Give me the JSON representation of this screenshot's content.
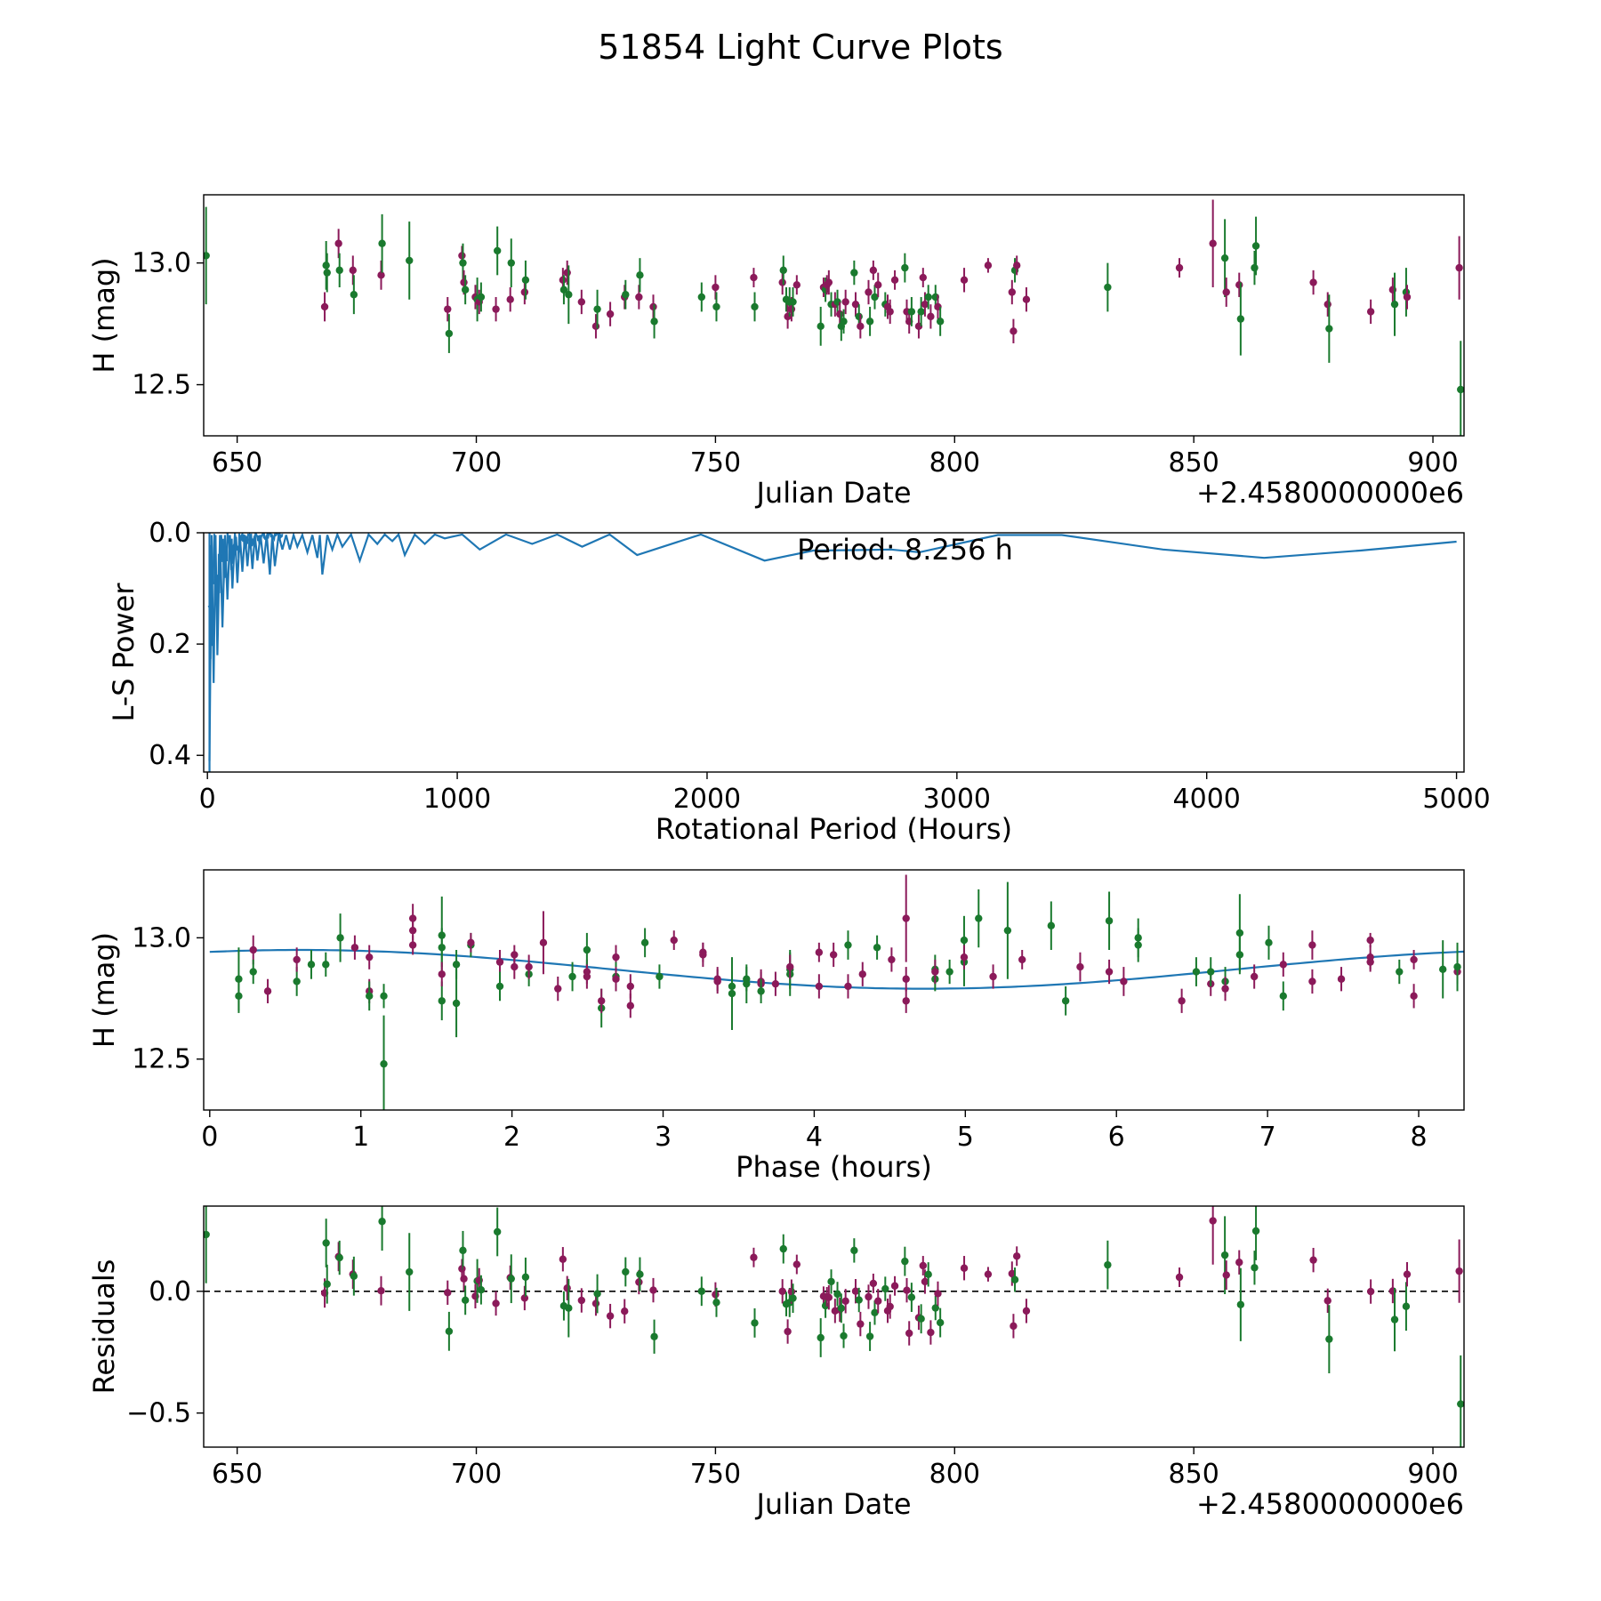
{
  "colors": {
    "green": "#1a7a2e",
    "purple": "#8b1a5a",
    "line": "#1f77b4"
  },
  "chart_data": {
    "type": "line",
    "title": "51854 Light Curve Plots",
    "panels": [
      {
        "id": "lc",
        "type": "scatter",
        "title": "",
        "xlabel": "Julian Date",
        "ylabel": "H (mag)",
        "offset_text": "+2.4580000000e6",
        "xlim": [
          643,
          906.5
        ],
        "ylim": [
          13.28,
          12.29
        ],
        "xticks": [
          650,
          700,
          750,
          800,
          850,
          900
        ],
        "xtick_labels": [
          "650",
          "700",
          "750",
          "800",
          "850",
          "900"
        ],
        "yticks": [
          13.0,
          12.5
        ],
        "ytick_labels": [
          "13.0",
          "12.5"
        ]
      },
      {
        "id": "ls",
        "type": "line",
        "xlabel": "Rotational Period (Hours)",
        "ylabel": "L-S Power",
        "annotation": "Period: 8.256 h",
        "xlim": [
          -15,
          5030
        ],
        "ylim": [
          0.0,
          0.43
        ],
        "xticks": [
          0,
          1000,
          2000,
          3000,
          4000,
          5000
        ],
        "xtick_labels": [
          "0",
          "1000",
          "2000",
          "3000",
          "4000",
          "5000"
        ],
        "yticks": [
          0.0,
          0.2,
          0.4
        ],
        "ytick_labels": [
          "0.0",
          "0.2",
          "0.4"
        ]
      },
      {
        "id": "phase",
        "type": "scatter",
        "xlabel": "Phase (hours)",
        "ylabel": "H (mag)",
        "xlim": [
          -0.04,
          8.3
        ],
        "ylim": [
          13.28,
          12.29
        ],
        "xticks": [
          0,
          1,
          2,
          3,
          4,
          5,
          6,
          7,
          8
        ],
        "xtick_labels": [
          "0",
          "1",
          "2",
          "3",
          "4",
          "5",
          "6",
          "7",
          "8"
        ],
        "yticks": [
          13.0,
          12.5
        ],
        "ytick_labels": [
          "13.0",
          "12.5"
        ]
      },
      {
        "id": "res",
        "type": "scatter",
        "xlabel": "Julian Date",
        "ylabel": "Residuals",
        "offset_text": "+2.4580000000e6",
        "xlim": [
          643,
          906.5
        ],
        "ylim": [
          0.35,
          -0.64
        ],
        "xticks": [
          650,
          700,
          750,
          800,
          850,
          900
        ],
        "xtick_labels": [
          "650",
          "700",
          "750",
          "800",
          "850",
          "900"
        ],
        "yticks": [
          0.0,
          -0.5
        ],
        "ytick_labels": [
          "0.0",
          "−0.5"
        ]
      }
    ],
    "fit": {
      "mean": 12.87,
      "amplitude": 0.08,
      "period_hours": 8.256,
      "phase_of_max_hours": 0.6
    },
    "periodogram_peaks": [
      [
        8.3,
        0.41
      ],
      [
        25,
        0.27
      ],
      [
        40,
        0.22
      ],
      [
        60,
        0.17
      ],
      [
        80,
        0.12
      ],
      [
        100,
        0.1
      ],
      [
        120,
        0.09
      ],
      [
        140,
        0.07
      ],
      [
        160,
        0.06
      ],
      [
        180,
        0.065
      ],
      [
        200,
        0.05
      ],
      [
        225,
        0.055
      ],
      [
        250,
        0.075
      ],
      [
        270,
        0.06
      ],
      [
        300,
        0.03
      ],
      [
        330,
        0.03
      ],
      [
        360,
        0.025
      ],
      [
        400,
        0.035
      ],
      [
        440,
        0.045
      ],
      [
        460,
        0.075
      ],
      [
        500,
        0.03
      ],
      [
        540,
        0.025
      ],
      [
        610,
        0.05
      ],
      [
        680,
        0.02
      ],
      [
        740,
        0.015
      ],
      [
        790,
        0.04
      ],
      [
        870,
        0.02
      ],
      [
        950,
        0.01
      ],
      [
        1090,
        0.03
      ],
      [
        1300,
        0.02
      ],
      [
        1500,
        0.025
      ],
      [
        1720,
        0.04
      ],
      [
        2230,
        0.05
      ],
      [
        2620,
        0.031
      ],
      [
        2850,
        0.035
      ],
      [
        3420,
        0.004
      ],
      [
        4230,
        0.045
      ],
      [
        5000,
        0.016
      ]
    ],
    "points": [
      {
        "jd": 643.5,
        "h": 13.03,
        "err": 0.2,
        "c": "g"
      },
      {
        "jd": 668.3,
        "h": 12.82,
        "err": 0.06,
        "c": "p"
      },
      {
        "jd": 668.6,
        "h": 12.99,
        "err": 0.1,
        "c": "g"
      },
      {
        "jd": 668.8,
        "h": 12.96,
        "err": 0.08,
        "c": "g"
      },
      {
        "jd": 671.2,
        "h": 13.08,
        "err": 0.06,
        "c": "p"
      },
      {
        "jd": 671.4,
        "h": 12.97,
        "err": 0.07,
        "c": "g"
      },
      {
        "jd": 674.2,
        "h": 12.97,
        "err": 0.06,
        "c": "p"
      },
      {
        "jd": 674.4,
        "h": 12.87,
        "err": 0.08,
        "c": "g"
      },
      {
        "jd": 680.1,
        "h": 12.95,
        "err": 0.06,
        "c": "p"
      },
      {
        "jd": 680.3,
        "h": 13.08,
        "err": 0.12,
        "c": "g"
      },
      {
        "jd": 686.0,
        "h": 13.01,
        "err": 0.16,
        "c": "g"
      },
      {
        "jd": 694.0,
        "h": 12.81,
        "err": 0.05,
        "c": "p"
      },
      {
        "jd": 694.3,
        "h": 12.71,
        "err": 0.08,
        "c": "g"
      },
      {
        "jd": 697.0,
        "h": 13.03,
        "err": 0.04,
        "c": "p"
      },
      {
        "jd": 697.2,
        "h": 13.0,
        "err": 0.08,
        "c": "g"
      },
      {
        "jd": 697.4,
        "h": 12.92,
        "err": 0.05,
        "c": "p"
      },
      {
        "jd": 697.7,
        "h": 12.89,
        "err": 0.06,
        "c": "g"
      },
      {
        "jd": 699.8,
        "h": 12.86,
        "err": 0.05,
        "c": "p"
      },
      {
        "jd": 700.2,
        "h": 12.85,
        "err": 0.09,
        "c": "g"
      },
      {
        "jd": 700.6,
        "h": 12.84,
        "err": 0.05,
        "c": "p"
      },
      {
        "jd": 701.0,
        "h": 12.86,
        "err": 0.06,
        "c": "g"
      },
      {
        "jd": 704.1,
        "h": 12.81,
        "err": 0.05,
        "c": "p"
      },
      {
        "jd": 704.4,
        "h": 13.05,
        "err": 0.1,
        "c": "g"
      },
      {
        "jd": 707.1,
        "h": 12.85,
        "err": 0.05,
        "c": "p"
      },
      {
        "jd": 707.3,
        "h": 13.0,
        "err": 0.1,
        "c": "g"
      },
      {
        "jd": 710.1,
        "h": 12.88,
        "err": 0.05,
        "c": "p"
      },
      {
        "jd": 710.3,
        "h": 12.93,
        "err": 0.08,
        "c": "g"
      },
      {
        "jd": 718.1,
        "h": 12.93,
        "err": 0.05,
        "c": "p"
      },
      {
        "jd": 718.3,
        "h": 12.89,
        "err": 0.06,
        "c": "g"
      },
      {
        "jd": 719.0,
        "h": 12.96,
        "err": 0.05,
        "c": "p"
      },
      {
        "jd": 719.3,
        "h": 12.87,
        "err": 0.12,
        "c": "g"
      },
      {
        "jd": 722.0,
        "h": 12.84,
        "err": 0.05,
        "c": "p"
      },
      {
        "jd": 725.0,
        "h": 12.74,
        "err": 0.05,
        "c": "p"
      },
      {
        "jd": 725.3,
        "h": 12.81,
        "err": 0.08,
        "c": "g"
      },
      {
        "jd": 728.0,
        "h": 12.79,
        "err": 0.05,
        "c": "p"
      },
      {
        "jd": 731.0,
        "h": 12.86,
        "err": 0.05,
        "c": "p"
      },
      {
        "jd": 731.2,
        "h": 12.87,
        "err": 0.06,
        "c": "g"
      },
      {
        "jd": 734.0,
        "h": 12.86,
        "err": 0.05,
        "c": "p"
      },
      {
        "jd": 734.2,
        "h": 12.95,
        "err": 0.07,
        "c": "g"
      },
      {
        "jd": 737.0,
        "h": 12.82,
        "err": 0.05,
        "c": "p"
      },
      {
        "jd": 737.2,
        "h": 12.76,
        "err": 0.07,
        "c": "g"
      },
      {
        "jd": 747.1,
        "h": 12.86,
        "err": 0.06,
        "c": "g"
      },
      {
        "jd": 750.0,
        "h": 12.9,
        "err": 0.05,
        "c": "p"
      },
      {
        "jd": 750.2,
        "h": 12.82,
        "err": 0.06,
        "c": "g"
      },
      {
        "jd": 758.0,
        "h": 12.94,
        "err": 0.04,
        "c": "p"
      },
      {
        "jd": 758.2,
        "h": 12.82,
        "err": 0.06,
        "c": "g"
      },
      {
        "jd": 764.0,
        "h": 12.92,
        "err": 0.05,
        "c": "p"
      },
      {
        "jd": 764.2,
        "h": 12.97,
        "err": 0.06,
        "c": "g"
      },
      {
        "jd": 764.8,
        "h": 12.85,
        "err": 0.05,
        "c": "g"
      },
      {
        "jd": 765.1,
        "h": 12.78,
        "err": 0.05,
        "c": "p"
      },
      {
        "jd": 765.5,
        "h": 12.84,
        "err": 0.06,
        "c": "g"
      },
      {
        "jd": 765.9,
        "h": 12.81,
        "err": 0.05,
        "c": "p"
      },
      {
        "jd": 766.2,
        "h": 12.84,
        "err": 0.06,
        "c": "g"
      },
      {
        "jd": 767.0,
        "h": 12.91,
        "err": 0.04,
        "c": "p"
      },
      {
        "jd": 772.0,
        "h": 12.74,
        "err": 0.08,
        "c": "g"
      },
      {
        "jd": 772.6,
        "h": 12.9,
        "err": 0.04,
        "c": "p"
      },
      {
        "jd": 773.0,
        "h": 12.89,
        "err": 0.05,
        "c": "g"
      },
      {
        "jd": 773.3,
        "h": 12.91,
        "err": 0.04,
        "c": "p"
      },
      {
        "jd": 773.7,
        "h": 12.92,
        "err": 0.05,
        "c": "p"
      },
      {
        "jd": 774.2,
        "h": 12.83,
        "err": 0.05,
        "c": "g"
      },
      {
        "jd": 775.0,
        "h": 12.83,
        "err": 0.05,
        "c": "p"
      },
      {
        "jd": 775.5,
        "h": 12.84,
        "err": 0.05,
        "c": "g"
      },
      {
        "jd": 776.0,
        "h": 12.79,
        "err": 0.05,
        "c": "p"
      },
      {
        "jd": 776.3,
        "h": 12.74,
        "err": 0.06,
        "c": "g"
      },
      {
        "jd": 776.8,
        "h": 12.76,
        "err": 0.05,
        "c": "g"
      },
      {
        "jd": 777.2,
        "h": 12.84,
        "err": 0.05,
        "c": "p"
      },
      {
        "jd": 779.0,
        "h": 12.96,
        "err": 0.05,
        "c": "g"
      },
      {
        "jd": 779.3,
        "h": 12.83,
        "err": 0.05,
        "c": "p"
      },
      {
        "jd": 780.0,
        "h": 12.78,
        "err": 0.05,
        "c": "g"
      },
      {
        "jd": 780.3,
        "h": 12.74,
        "err": 0.05,
        "c": "p"
      },
      {
        "jd": 782.0,
        "h": 12.88,
        "err": 0.05,
        "c": "p"
      },
      {
        "jd": 782.3,
        "h": 12.76,
        "err": 0.06,
        "c": "g"
      },
      {
        "jd": 783.0,
        "h": 12.97,
        "err": 0.04,
        "c": "p"
      },
      {
        "jd": 783.3,
        "h": 12.86,
        "err": 0.05,
        "c": "g"
      },
      {
        "jd": 784.0,
        "h": 12.91,
        "err": 0.05,
        "c": "p"
      },
      {
        "jd": 785.5,
        "h": 12.83,
        "err": 0.05,
        "c": "g"
      },
      {
        "jd": 786.0,
        "h": 12.82,
        "err": 0.05,
        "c": "p"
      },
      {
        "jd": 786.5,
        "h": 12.8,
        "err": 0.05,
        "c": "p"
      },
      {
        "jd": 787.5,
        "h": 12.93,
        "err": 0.04,
        "c": "p"
      },
      {
        "jd": 789.6,
        "h": 12.98,
        "err": 0.06,
        "c": "g"
      },
      {
        "jd": 790.0,
        "h": 12.8,
        "err": 0.05,
        "c": "p"
      },
      {
        "jd": 790.5,
        "h": 12.76,
        "err": 0.05,
        "c": "p"
      },
      {
        "jd": 791.0,
        "h": 12.8,
        "err": 0.06,
        "c": "g"
      },
      {
        "jd": 792.5,
        "h": 12.74,
        "err": 0.05,
        "c": "p"
      },
      {
        "jd": 793.0,
        "h": 12.8,
        "err": 0.06,
        "c": "g"
      },
      {
        "jd": 793.4,
        "h": 12.94,
        "err": 0.04,
        "c": "p"
      },
      {
        "jd": 793.8,
        "h": 12.83,
        "err": 0.05,
        "c": "p"
      },
      {
        "jd": 794.5,
        "h": 12.86,
        "err": 0.05,
        "c": "g"
      },
      {
        "jd": 795.0,
        "h": 12.78,
        "err": 0.05,
        "c": "p"
      },
      {
        "jd": 796.0,
        "h": 12.86,
        "err": 0.05,
        "c": "g"
      },
      {
        "jd": 796.5,
        "h": 12.82,
        "err": 0.05,
        "c": "p"
      },
      {
        "jd": 797.0,
        "h": 12.76,
        "err": 0.06,
        "c": "g"
      },
      {
        "jd": 802.0,
        "h": 12.93,
        "err": 0.05,
        "c": "p"
      },
      {
        "jd": 807.0,
        "h": 12.99,
        "err": 0.03,
        "c": "p"
      },
      {
        "jd": 812.0,
        "h": 12.88,
        "err": 0.05,
        "c": "p"
      },
      {
        "jd": 812.3,
        "h": 12.72,
        "err": 0.05,
        "c": "p"
      },
      {
        "jd": 812.6,
        "h": 12.97,
        "err": 0.05,
        "c": "g"
      },
      {
        "jd": 813.0,
        "h": 12.99,
        "err": 0.04,
        "c": "p"
      },
      {
        "jd": 815.0,
        "h": 12.85,
        "err": 0.05,
        "c": "p"
      },
      {
        "jd": 832.0,
        "h": 12.9,
        "err": 0.1,
        "c": "g"
      },
      {
        "jd": 847.0,
        "h": 12.98,
        "err": 0.04,
        "c": "p"
      },
      {
        "jd": 854.0,
        "h": 13.08,
        "err": 0.18,
        "c": "p"
      },
      {
        "jd": 856.5,
        "h": 13.02,
        "err": 0.16,
        "c": "g"
      },
      {
        "jd": 856.8,
        "h": 12.88,
        "err": 0.06,
        "c": "p"
      },
      {
        "jd": 859.5,
        "h": 12.91,
        "err": 0.05,
        "c": "p"
      },
      {
        "jd": 859.8,
        "h": 12.77,
        "err": 0.15,
        "c": "g"
      },
      {
        "jd": 862.7,
        "h": 12.98,
        "err": 0.07,
        "c": "g"
      },
      {
        "jd": 863.0,
        "h": 13.07,
        "err": 0.12,
        "c": "g"
      },
      {
        "jd": 875.0,
        "h": 12.92,
        "err": 0.05,
        "c": "p"
      },
      {
        "jd": 878.0,
        "h": 12.83,
        "err": 0.05,
        "c": "p"
      },
      {
        "jd": 878.3,
        "h": 12.73,
        "err": 0.14,
        "c": "g"
      },
      {
        "jd": 887.0,
        "h": 12.8,
        "err": 0.05,
        "c": "p"
      },
      {
        "jd": 891.6,
        "h": 12.89,
        "err": 0.05,
        "c": "p"
      },
      {
        "jd": 892.0,
        "h": 12.83,
        "err": 0.13,
        "c": "g"
      },
      {
        "jd": 894.4,
        "h": 12.88,
        "err": 0.1,
        "c": "g"
      },
      {
        "jd": 894.6,
        "h": 12.86,
        "err": 0.05,
        "c": "p"
      },
      {
        "jd": 905.5,
        "h": 12.98,
        "err": 0.13,
        "c": "p"
      },
      {
        "jd": 905.8,
        "h": 12.48,
        "err": 0.2,
        "c": "g"
      }
    ]
  }
}
